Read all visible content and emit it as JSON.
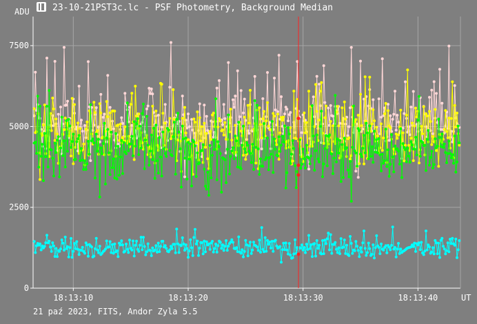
{
  "window": {
    "title": "23-10-21PST3c.lc - PSF Photometry, Background Median"
  },
  "footer": {
    "caption": "21 paź 2023, FITS, Andor Zyla 5.5"
  },
  "colors": {
    "background": "#7f7f7f",
    "grid": "#a6a6a6",
    "axis": "#ffffff",
    "cursor": "#ff2020",
    "series_pink": "#ffd7d7",
    "series_yellow": "#ffff00",
    "series_green": "#00ff00",
    "series_cyan": "#00ffff"
  },
  "chart_data": {
    "type": "line",
    "ylabel": "ADU",
    "xlabel": "UT",
    "ylim": [
      0,
      8400
    ],
    "yticks": [
      0,
      2500,
      5000,
      7500
    ],
    "ytick_labels": [
      "0",
      "2500",
      "5000",
      "7500"
    ],
    "xlim": [
      "18:13:06.5",
      "18:13:43.7"
    ],
    "xticks": [
      "18:13:10",
      "18:13:20",
      "18:13:30",
      "18:13:40"
    ],
    "xtick_labels": [
      "18:13:10",
      "18:13:20",
      "18:13:30",
      "18:13:40"
    ],
    "grid": true,
    "cursor_x": "18:13:29.6",
    "sampling": {
      "start": "18:13:06.6",
      "step_s": 0.1
    },
    "series": [
      {
        "color": "series_pink",
        "base": 5100,
        "spread": 1300,
        "spike_rate": 0.22,
        "spike_size": 1200,
        "seed": 7
      },
      {
        "color": "series_yellow",
        "base": 4700,
        "spread": 1400,
        "spike_rate": 0.18,
        "spike_size": 1100,
        "seed": 13
      },
      {
        "color": "series_green",
        "base": 4200,
        "spread": 1300,
        "spike_rate": 0.15,
        "spike_size": 1000,
        "seed": 29
      },
      {
        "color": "series_cyan",
        "base": 1250,
        "spread": 450,
        "spike_rate": 0.08,
        "spike_size": 350,
        "seed": 41
      }
    ],
    "cursor_markers": [
      5250,
      3800,
      3500,
      1050
    ]
  }
}
